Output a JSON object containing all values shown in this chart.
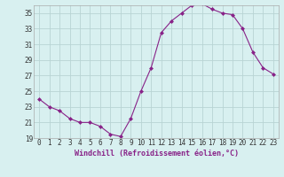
{
  "x": [
    0,
    1,
    2,
    3,
    4,
    5,
    6,
    7,
    8,
    9,
    10,
    11,
    12,
    13,
    14,
    15,
    16,
    17,
    18,
    19,
    20,
    21,
    22,
    23
  ],
  "y": [
    24.0,
    23.0,
    22.5,
    21.5,
    21.0,
    21.0,
    20.5,
    19.5,
    19.2,
    21.5,
    25.0,
    28.0,
    32.5,
    34.0,
    35.0,
    36.0,
    36.2,
    35.5,
    35.0,
    34.8,
    33.0,
    30.0,
    28.0,
    27.2
  ],
  "line_color": "#882288",
  "marker": "D",
  "marker_size": 2,
  "bg_color": "#d8f0f0",
  "grid_color": "#b8d4d4",
  "xlabel": "Windchill (Refroidissement éolien,°C)",
  "xlabel_fontsize": 6.0,
  "tick_fontsize": 5.5,
  "ylim": [
    19,
    36
  ],
  "xlim": [
    -0.5,
    23.5
  ],
  "yticks": [
    19,
    21,
    23,
    25,
    27,
    29,
    31,
    33,
    35
  ],
  "xticks": [
    0,
    1,
    2,
    3,
    4,
    5,
    6,
    7,
    8,
    9,
    10,
    11,
    12,
    13,
    14,
    15,
    16,
    17,
    18,
    19,
    20,
    21,
    22,
    23
  ]
}
